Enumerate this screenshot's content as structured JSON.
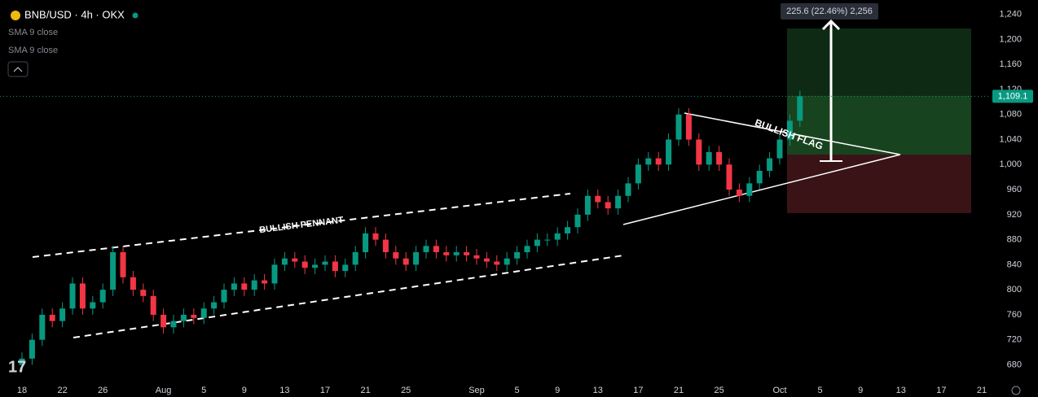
{
  "chart_data": {
    "type": "candlestick",
    "title": "BNB/USD · 4h · OKX",
    "indicators": [
      "SMA 9 close",
      "SMA 9 close"
    ],
    "annotations": [
      "BULLISH PENNANT",
      "BULLISH FLAG"
    ],
    "measure_label": "225.6 (22.46%) 2,256",
    "categories": [
      "18",
      null,
      null,
      null,
      "22",
      null,
      null,
      null,
      "26",
      null,
      null,
      null,
      null,
      null,
      "Aug",
      null,
      null,
      null,
      "5",
      null,
      null,
      null,
      "9",
      null,
      null,
      null,
      "13",
      null,
      null,
      null,
      "17",
      null,
      null,
      null,
      "21",
      null,
      null,
      null,
      "25",
      null,
      null,
      null,
      null,
      null,
      null,
      "Sep",
      null,
      null,
      null,
      "5",
      null,
      null,
      null,
      "9",
      null,
      null,
      null,
      "13",
      null,
      null,
      null,
      "17",
      null,
      null,
      null,
      "21",
      null,
      null,
      null,
      "25",
      null,
      null,
      null,
      null,
      null,
      "Oct",
      null,
      null,
      null,
      "5",
      null,
      null,
      null,
      "9",
      null,
      null,
      null,
      "13",
      null,
      null,
      null,
      "17",
      null,
      null,
      null,
      "21",
      null
    ],
    "open": [
      680,
      690,
      720,
      760,
      750,
      770,
      810,
      770,
      780,
      800,
      860,
      820,
      800,
      790,
      760,
      740,
      750,
      760,
      755,
      770,
      780,
      800,
      810,
      800,
      815,
      810,
      840,
      850,
      845,
      835,
      840,
      845,
      830,
      840,
      860,
      890,
      880,
      860,
      850,
      840,
      860,
      870,
      860,
      855,
      860,
      855,
      850,
      845,
      840,
      850,
      860,
      870,
      880,
      880,
      890,
      900,
      920,
      950,
      940,
      930,
      950,
      970,
      1000,
      1010,
      1000,
      1040,
      1080,
      1040,
      1000,
      1020,
      1000,
      960,
      950,
      970,
      990,
      1010,
      1040,
      1070,
      null,
      null,
      null,
      null,
      null,
      null,
      null,
      null,
      null,
      null,
      null,
      null,
      null,
      null,
      null,
      null,
      null,
      null,
      null
    ],
    "high": [
      700,
      730,
      770,
      770,
      780,
      820,
      820,
      790,
      810,
      870,
      870,
      830,
      810,
      800,
      770,
      760,
      770,
      770,
      780,
      790,
      810,
      820,
      820,
      825,
      825,
      850,
      860,
      860,
      855,
      850,
      855,
      855,
      850,
      870,
      900,
      900,
      890,
      870,
      860,
      870,
      880,
      880,
      870,
      870,
      870,
      865,
      860,
      855,
      860,
      870,
      880,
      890,
      890,
      900,
      910,
      930,
      960,
      960,
      950,
      960,
      980,
      1010,
      1020,
      1020,
      1050,
      1090,
      1090,
      1050,
      1030,
      1030,
      1010,
      970,
      980,
      1000,
      1020,
      1050,
      1080,
      1118,
      null,
      null,
      null,
      null,
      null,
      null,
      null,
      null,
      null,
      null,
      null,
      null,
      null,
      null,
      null,
      null,
      null,
      null,
      null
    ],
    "low": [
      670,
      680,
      710,
      740,
      740,
      760,
      760,
      760,
      770,
      790,
      810,
      790,
      780,
      750,
      730,
      730,
      740,
      745,
      745,
      760,
      770,
      790,
      790,
      790,
      800,
      800,
      830,
      835,
      825,
      825,
      830,
      820,
      820,
      830,
      850,
      870,
      850,
      840,
      830,
      830,
      850,
      850,
      845,
      845,
      845,
      840,
      835,
      830,
      830,
      840,
      850,
      860,
      870,
      870,
      880,
      890,
      910,
      930,
      920,
      920,
      940,
      960,
      990,
      990,
      990,
      1030,
      1030,
      990,
      990,
      990,
      950,
      940,
      940,
      960,
      980,
      1000,
      1030,
      1060,
      null,
      null,
      null,
      null,
      null,
      null,
      null,
      null,
      null,
      null,
      null,
      null,
      null,
      null,
      null,
      null,
      null,
      null,
      null
    ],
    "close": [
      690,
      720,
      760,
      750,
      770,
      810,
      770,
      780,
      800,
      860,
      820,
      800,
      790,
      760,
      740,
      750,
      760,
      755,
      770,
      780,
      800,
      810,
      800,
      815,
      810,
      840,
      850,
      845,
      835,
      840,
      845,
      830,
      840,
      860,
      890,
      880,
      860,
      850,
      840,
      860,
      870,
      860,
      855,
      860,
      855,
      850,
      845,
      840,
      850,
      860,
      870,
      880,
      880,
      890,
      900,
      920,
      950,
      940,
      930,
      950,
      970,
      1000,
      1010,
      1000,
      1040,
      1080,
      1040,
      1000,
      1020,
      1000,
      960,
      950,
      970,
      990,
      1010,
      1040,
      1070,
      1109.1,
      null,
      null,
      null,
      null,
      null,
      null,
      null,
      null,
      null,
      null,
      null,
      null,
      null,
      null,
      null,
      null,
      null,
      null,
      null
    ],
    "last_price": {
      "value": 1109.1,
      "label": "1,109.1"
    },
    "up_color": "#089981",
    "down_color": "#f23645",
    "ylim": [
      665,
      1263
    ],
    "yticks": [
      680,
      720,
      760,
      800,
      840,
      880,
      920,
      960,
      {
        "value": 1000,
        "label": "1,000"
      },
      {
        "value": 1040,
        "label": "1,040"
      },
      {
        "value": 1080,
        "label": "1,080"
      },
      {
        "value": 1120,
        "label": "1,120"
      },
      {
        "value": 1160,
        "label": "1,160"
      },
      {
        "value": 1200,
        "label": "1,200"
      },
      {
        "value": 1240,
        "label": "1,240"
      }
    ]
  }
}
